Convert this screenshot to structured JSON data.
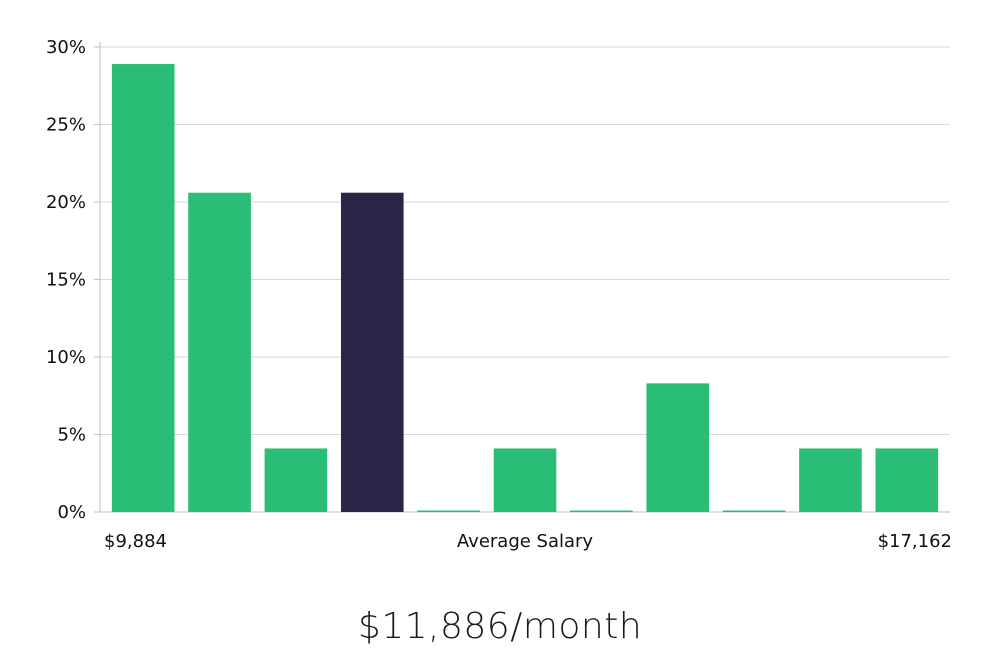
{
  "colors": {
    "bar": "#2abd75",
    "highlight": "#2a2647",
    "grid": "#d9d9d9",
    "axis": "#bfbfbf",
    "text": "#111111"
  },
  "chart_data": {
    "type": "bar",
    "y_ticks": [
      "0%",
      "5%",
      "10%",
      "15%",
      "20%",
      "25%",
      "30%"
    ],
    "ylim": [
      0,
      30
    ],
    "grid": true,
    "values": [
      28.9,
      20.6,
      4.1,
      20.6,
      0,
      4.1,
      0,
      8.3,
      0,
      4.1,
      4.1
    ],
    "highlight_index": 3,
    "x_min_label": "$9,884",
    "xlabel": "Average Salary",
    "x_max_label": "$17,162"
  },
  "headline": "$11,886/month"
}
